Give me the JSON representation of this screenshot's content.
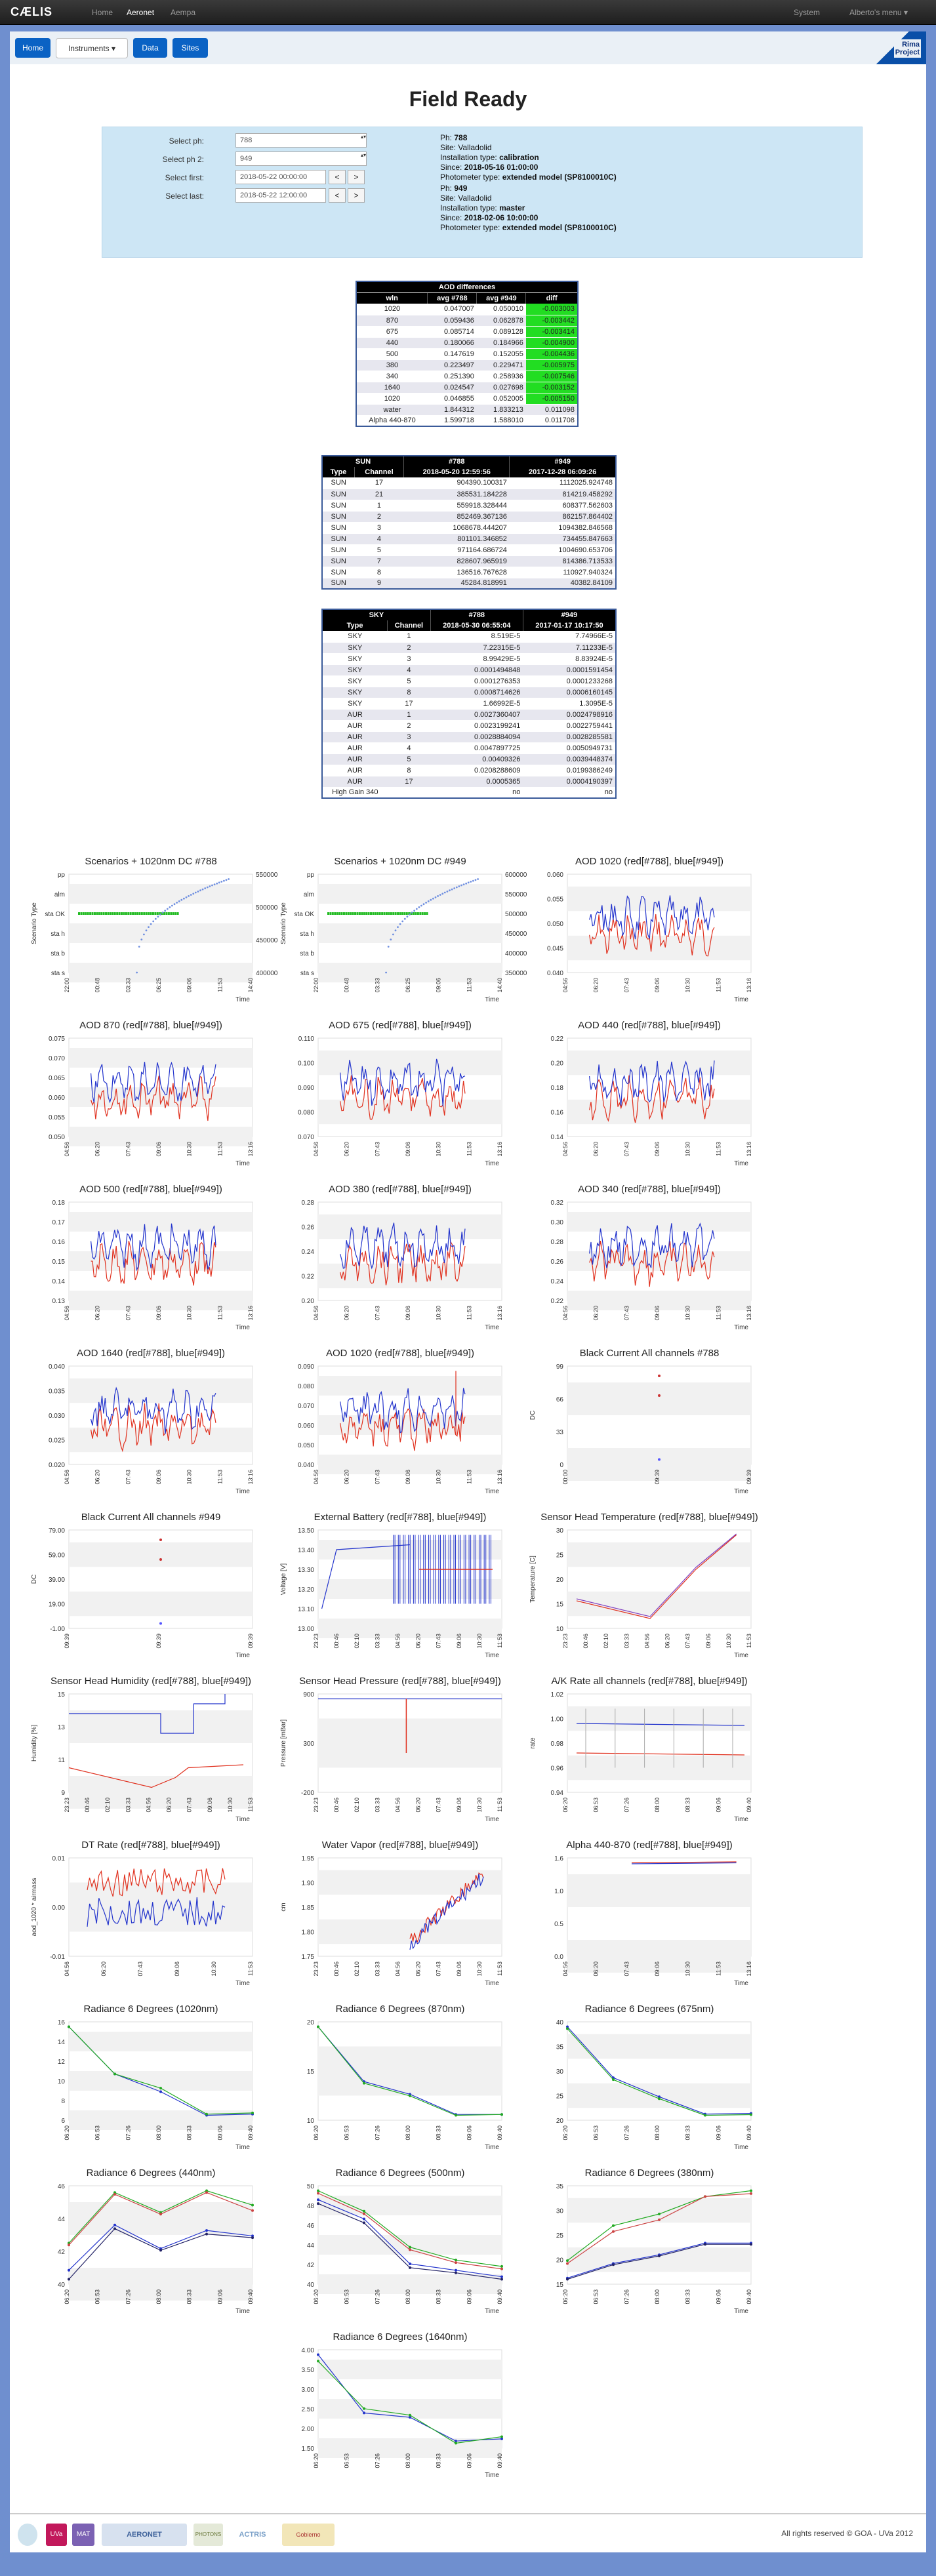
{
  "navbar": {
    "brand": "CÆLIS",
    "links": [
      "Home",
      "Aeronet",
      "Aempa"
    ],
    "right": [
      "System",
      "Alberto's menu ▾"
    ]
  },
  "tabs": [
    "Home",
    "Instruments ▾",
    "Data",
    "Sites"
  ],
  "corner": {
    "line1": "Rima",
    "line2": "Project"
  },
  "page": {
    "title": "Field Ready"
  },
  "selector": {
    "ph_label": "Select ph:",
    "ph_value": "788",
    "ph2_label": "Select ph 2:",
    "ph2_value": "949",
    "first_label": "Select first:",
    "first_value": "2018-05-22 00:00:00",
    "last_label": "Select last:",
    "last_value": "2018-05-22 12:00:00",
    "prev": "<",
    "next": ">"
  },
  "info": [
    {
      "ph": "788",
      "site": "Valladolid",
      "type": "calibration",
      "since": "2018-05-16 01:00:00",
      "ptype": "extended model (SP8100010C)"
    },
    {
      "ph": "949",
      "site": "Valladolid",
      "type": "master",
      "since": "2018-02-06 10:00:00",
      "ptype": "extended model (SP8100010C)"
    }
  ],
  "info_labels": {
    "ph": "Ph:",
    "site": "Site:",
    "type": "Installation type:",
    "since": "Since:",
    "ptype": "Photometer type:"
  },
  "aod_table": {
    "caption": "AOD differences",
    "headers": [
      "wln",
      "avg #788",
      "avg #949",
      "diff"
    ],
    "rows": [
      [
        "1020",
        "0.047007",
        "0.050010",
        "-0.003003"
      ],
      [
        "870",
        "0.059436",
        "0.062878",
        "-0.003442"
      ],
      [
        "675",
        "0.085714",
        "0.089128",
        "-0.003414"
      ],
      [
        "440",
        "0.180066",
        "0.184966",
        "-0.004900"
      ],
      [
        "500",
        "0.147619",
        "0.152055",
        "-0.004436"
      ],
      [
        "380",
        "0.223497",
        "0.229471",
        "-0.005975"
      ],
      [
        "340",
        "0.251390",
        "0.258936",
        "-0.007546"
      ],
      [
        "1640",
        "0.024547",
        "0.027698",
        "-0.003152"
      ],
      [
        "1020",
        "0.046855",
        "0.052005",
        "-0.005150"
      ],
      [
        "water",
        "1.844312",
        "1.833213",
        "0.011098"
      ],
      [
        "Alpha 440-870",
        "1.599718",
        "1.588010",
        "0.011708"
      ]
    ]
  },
  "sun_table": {
    "cap": [
      "SUN",
      "#788",
      "#949"
    ],
    "headers": [
      "Type",
      "Channel",
      "2018-05-20 12:59:56",
      "2017-12-28 06:09:26"
    ],
    "rows": [
      [
        "SUN",
        "17",
        "904390.100317",
        "1112025.924748"
      ],
      [
        "SUN",
        "21",
        "385531.184228",
        "814219.458292"
      ],
      [
        "SUN",
        "1",
        "559918.328444",
        "608377.562603"
      ],
      [
        "SUN",
        "2",
        "852469.367136",
        "862157.864402"
      ],
      [
        "SUN",
        "3",
        "1068678.444207",
        "1094382.846568"
      ],
      [
        "SUN",
        "4",
        "801101.346852",
        "734455.847663"
      ],
      [
        "SUN",
        "5",
        "971164.686724",
        "1004690.653706"
      ],
      [
        "SUN",
        "7",
        "828607.965919",
        "814386.713533"
      ],
      [
        "SUN",
        "8",
        "136516.767628",
        "110927.940324"
      ],
      [
        "SUN",
        "9",
        "45284.818991",
        "40382.84109"
      ]
    ]
  },
  "sky_table": {
    "cap": [
      "SKY",
      "#788",
      "#949"
    ],
    "headers": [
      "Type",
      "Channel",
      "2018-05-30 06:55:04",
      "2017-01-17 10:17:50"
    ],
    "rows": [
      [
        "SKY",
        "1",
        "8.519E-5",
        "7.74966E-5"
      ],
      [
        "SKY",
        "2",
        "7.22315E-5",
        "7.11233E-5"
      ],
      [
        "SKY",
        "3",
        "8.99429E-5",
        "8.83924E-5"
      ],
      [
        "SKY",
        "4",
        "0.0001494848",
        "0.0001591454"
      ],
      [
        "SKY",
        "5",
        "0.0001276353",
        "0.0001233268"
      ],
      [
        "SKY",
        "8",
        "0.0008714626",
        "0.0006160145"
      ],
      [
        "SKY",
        "17",
        "1.66992E-5",
        "1.3095E-5"
      ],
      [
        "AUR",
        "1",
        "0.0027360407",
        "0.0024798916"
      ],
      [
        "AUR",
        "2",
        "0.0023199241",
        "0.0022759441"
      ],
      [
        "AUR",
        "3",
        "0.0028884094",
        "0.0028285581"
      ],
      [
        "AUR",
        "4",
        "0.0047897725",
        "0.0050949731"
      ],
      [
        "AUR",
        "5",
        "0.00409326",
        "0.0039448374"
      ],
      [
        "AUR",
        "8",
        "0.0208288609",
        "0.0199386249"
      ],
      [
        "AUR",
        "17",
        "0.0005365",
        "0.0004190397"
      ],
      [
        "High Gain 340",
        "",
        "no",
        "no"
      ]
    ]
  },
  "charts": [
    {
      "title": "Scenarios + 1020nm DC #788",
      "ylabel": "Scenario Type",
      "cats": [
        "pp",
        "alm",
        "sta OK",
        "sta h",
        "sta b",
        "sta s"
      ],
      "yticks_r": [
        "550000",
        "500000",
        "450000",
        "400000"
      ],
      "xticks": [
        "22:00",
        "00:48",
        "03:33",
        "06:25",
        "09:06",
        "11:53",
        "14:40"
      ],
      "type": "scen"
    },
    {
      "title": "Scenarios + 1020nm DC #949",
      "ylabel": "Scenario Type",
      "cats": [
        "pp",
        "alm",
        "sta OK",
        "sta h",
        "sta b",
        "sta s"
      ],
      "yticks_r": [
        "600000",
        "550000",
        "500000",
        "450000",
        "400000",
        "350000"
      ],
      "xticks": [
        "22:00",
        "00:48",
        "03:33",
        "06:25",
        "09:06",
        "11:53",
        "14:40"
      ],
      "type": "scen"
    },
    {
      "title": "AOD 1020 (red[#788], blue[#949])",
      "ylabel": "",
      "yticks": [
        "0.060",
        "0.055",
        "0.050",
        "0.045",
        "0.040"
      ],
      "xticks": [
        "04:56",
        "06:20",
        "07:43",
        "09:06",
        "10:30",
        "11:53",
        "13:16"
      ],
      "type": "aod"
    },
    {
      "title": "AOD 870 (red[#788], blue[#949])",
      "ylabel": "",
      "yticks": [
        "0.075",
        "0.070",
        "0.065",
        "0.060",
        "0.055",
        "0.050"
      ],
      "xticks": [
        "04:56",
        "06:20",
        "07:43",
        "09:06",
        "10:30",
        "11:53",
        "13:16"
      ],
      "type": "aod"
    },
    {
      "title": "AOD 675 (red[#788], blue[#949])",
      "ylabel": "",
      "yticks": [
        "0.110",
        "0.100",
        "0.090",
        "0.080",
        "0.070"
      ],
      "xticks": [
        "04:56",
        "06:20",
        "07:43",
        "09:06",
        "10:30",
        "11:53",
        "13:16"
      ],
      "type": "aod"
    },
    {
      "title": "AOD 440 (red[#788], blue[#949])",
      "ylabel": "",
      "yticks": [
        "0.22",
        "0.20",
        "0.18",
        "0.16",
        "0.14"
      ],
      "xticks": [
        "04:56",
        "06:20",
        "07:43",
        "09:06",
        "10:30",
        "11:53",
        "13:16"
      ],
      "type": "aod"
    },
    {
      "title": "AOD 500 (red[#788], blue[#949])",
      "ylabel": "",
      "yticks": [
        "0.18",
        "0.17",
        "0.16",
        "0.15",
        "0.14",
        "0.13"
      ],
      "xticks": [
        "04:56",
        "06:20",
        "07:43",
        "09:06",
        "10:30",
        "11:53",
        "13:16"
      ],
      "type": "aod"
    },
    {
      "title": "AOD 380 (red[#788], blue[#949])",
      "ylabel": "",
      "yticks": [
        "0.28",
        "0.26",
        "0.24",
        "0.22",
        "0.20"
      ],
      "xticks": [
        "04:56",
        "06:20",
        "07:43",
        "09:06",
        "10:30",
        "11:53",
        "13:16"
      ],
      "type": "aod"
    },
    {
      "title": "AOD 340 (red[#788], blue[#949])",
      "ylabel": "",
      "yticks": [
        "0.32",
        "0.30",
        "0.28",
        "0.26",
        "0.24",
        "0.22"
      ],
      "xticks": [
        "04:56",
        "06:20",
        "07:43",
        "09:06",
        "10:30",
        "11:53",
        "13:16"
      ],
      "type": "aod"
    },
    {
      "title": "AOD 1640 (red[#788], blue[#949])",
      "ylabel": "",
      "yticks": [
        "0.040",
        "0.035",
        "0.030",
        "0.025",
        "0.020"
      ],
      "xticks": [
        "04:56",
        "06:20",
        "07:43",
        "09:06",
        "10:30",
        "11:53",
        "13:16"
      ],
      "type": "aod"
    },
    {
      "title": "AOD 1020 (red[#788], blue[#949])",
      "ylabel": "",
      "yticks": [
        "0.090",
        "0.080",
        "0.070",
        "0.060",
        "0.050",
        "0.040"
      ],
      "xticks": [
        "04:56",
        "06:20",
        "07:43",
        "09:06",
        "10:30",
        "11:53",
        "13:16"
      ],
      "type": "aod2"
    },
    {
      "title": "Black Current All channels #788",
      "ylabel": "DC",
      "yticks": [
        "99",
        "66",
        "33",
        "0"
      ],
      "xticks": [
        "00:00",
        "09:39",
        "09:39"
      ],
      "type": "bc"
    },
    {
      "title": "Black Current All channels #949",
      "ylabel": "DC",
      "yticks": [
        "79.00",
        "59.00",
        "39.00",
        "19.00",
        "-1.00"
      ],
      "xticks": [
        "09:39",
        "09:39",
        "09:39"
      ],
      "type": "bc"
    },
    {
      "title": "External Battery (red[#788], blue[#949])",
      "ylabel": "Voltage [V]",
      "yticks": [
        "13.50",
        "13.40",
        "13.30",
        "13.20",
        "13.10",
        "13.00"
      ],
      "xticks": [
        "23:23",
        "00:46",
        "02:10",
        "03:33",
        "04:56",
        "06:20",
        "07:43",
        "09:06",
        "10:30",
        "11:53"
      ],
      "type": "batt"
    },
    {
      "title": "Sensor Head Temperature (red[#788], blue[#949])",
      "ylabel": "Temperature [C]",
      "yticks": [
        "30",
        "25",
        "20",
        "15",
        "10"
      ],
      "xticks": [
        "23:23",
        "00:46",
        "02:10",
        "03:33",
        "04:56",
        "06:20",
        "07:43",
        "09:06",
        "10:30",
        "11:53"
      ],
      "type": "temp"
    },
    {
      "title": "Sensor Head Humidity (red[#788], blue[#949])",
      "ylabel": "Humidity [%]",
      "yticks": [
        "15",
        "13",
        "11",
        "9"
      ],
      "xticks": [
        "23:23",
        "00:46",
        "02:10",
        "03:33",
        "04:56",
        "06:20",
        "07:43",
        "09:06",
        "10:30",
        "11:53"
      ],
      "type": "hum"
    },
    {
      "title": "Sensor Head Pressure (red[#788], blue[#949])",
      "ylabel": "Pressure [mBar]",
      "yticks": [
        "900",
        "300",
        "-200"
      ],
      "xticks": [
        "23:23",
        "00:46",
        "02:10",
        "03:33",
        "04:56",
        "06:20",
        "07:43",
        "09:06",
        "10:30",
        "11:53"
      ],
      "type": "pres"
    },
    {
      "title": "A/K Rate all channels (red[#788], blue[#949])",
      "ylabel": "rate",
      "yticks": [
        "1.02",
        "1.00",
        "0.98",
        "0.96",
        "0.94"
      ],
      "xticks": [
        "06:20",
        "06:53",
        "07:26",
        "08:00",
        "08:33",
        "09:06",
        "09:40"
      ],
      "type": "ak"
    },
    {
      "title": "DT Rate (red[#788], blue[#949])",
      "ylabel": "aod_1020 * airmass",
      "yticks": [
        "0.01",
        "0.00",
        "-0.01"
      ],
      "xticks": [
        "04:56",
        "06:20",
        "07:43",
        "09:06",
        "10:30",
        "11:53"
      ],
      "type": "dt"
    },
    {
      "title": "Water Vapor (red[#788], blue[#949])",
      "ylabel": "cm",
      "yticks": [
        "1.95",
        "1.90",
        "1.85",
        "1.80",
        "1.75"
      ],
      "xticks": [
        "23:23",
        "00:46",
        "02:10",
        "03:33",
        "04:56",
        "06:20",
        "07:43",
        "09:06",
        "10:30",
        "11:53"
      ],
      "type": "wv"
    },
    {
      "title": "Alpha 440-870 (red[#788], blue[#949])",
      "ylabel": "",
      "yticks": [
        "1.6",
        "1.0",
        "0.5",
        "0.0"
      ],
      "xticks": [
        "04:56",
        "06:20",
        "07:43",
        "09:06",
        "10:30",
        "11:53",
        "13:16"
      ],
      "type": "alpha"
    },
    {
      "title": "Radiance 6 Degrees (1020nm)",
      "ylabel": "",
      "yticks": [
        "16",
        "14",
        "12",
        "10",
        "8",
        "6"
      ],
      "xticks": [
        "06:20",
        "06:53",
        "07:26",
        "08:00",
        "08:33",
        "09:06",
        "09:40"
      ],
      "type": "rad",
      "pts": [
        [
          15,
          15
        ],
        [
          11,
          11
        ],
        [
          9.5,
          9.8
        ],
        [
          7.5,
          7.6
        ],
        [
          7.6,
          7.7
        ]
      ]
    },
    {
      "title": "Radiance 6 Degrees (870nm)",
      "ylabel": "",
      "yticks": [
        "20",
        "15",
        "10"
      ],
      "xticks": [
        "06:20",
        "06:53",
        "07:26",
        "08:00",
        "08:33",
        "09:06",
        "09:40"
      ],
      "type": "rad",
      "pts": [
        [
          22,
          22
        ],
        [
          15.5,
          15.3
        ],
        [
          14,
          13.8
        ],
        [
          11.6,
          11.5
        ],
        [
          11.6,
          11.6
        ]
      ]
    },
    {
      "title": "Radiance 6 Degrees (675nm)",
      "ylabel": "",
      "yticks": [
        "40",
        "35",
        "30",
        "25",
        "20"
      ],
      "xticks": [
        "06:20",
        "06:53",
        "07:26",
        "08:00",
        "08:33",
        "09:06",
        "09:40"
      ],
      "type": "rad",
      "pts": [
        [
          36.5,
          36.2
        ],
        [
          28.5,
          28.2
        ],
        [
          25.5,
          25.2
        ],
        [
          22.8,
          22.6
        ],
        [
          22.9,
          22.7
        ]
      ]
    },
    {
      "title": "Radiance 6 Degrees (440nm)",
      "ylabel": "",
      "yticks": [
        "46",
        "44",
        "42",
        "40"
      ],
      "xticks": [
        "06:20",
        "06:53",
        "07:26",
        "08:00",
        "08:33",
        "09:06",
        "09:40"
      ],
      "type": "rad4",
      "pts": [
        [
          41,
          40.5,
          42.5,
          42.4
        ],
        [
          43.5,
          43.3,
          45.3,
          45.2
        ],
        [
          42.2,
          42.1,
          44.2,
          44.1
        ],
        [
          43.2,
          43.0,
          45.4,
          45.3
        ],
        [
          42.9,
          42.8,
          44.6,
          44.3
        ]
      ]
    },
    {
      "title": "Radiance 6 Degrees (500nm)",
      "ylabel": "",
      "yticks": [
        "50",
        "48",
        "46",
        "44",
        "42",
        "40"
      ],
      "xticks": [
        "06:20",
        "06:53",
        "07:26",
        "08:00",
        "08:33",
        "09:06",
        "09:40"
      ],
      "type": "rad4",
      "pts": [
        [
          47.5,
          47.2,
          48.2,
          48
        ],
        [
          46,
          45.7,
          46.6,
          46.4
        ],
        [
          42.5,
          42.2,
          43.8,
          43.6
        ],
        [
          42,
          41.8,
          42.8,
          42.6
        ],
        [
          41.5,
          41.3,
          42.3,
          42.1
        ]
      ]
    },
    {
      "title": "Radiance 6 Degrees (380nm)",
      "ylabel": "",
      "yticks": [
        "35",
        "30",
        "25",
        "20",
        "15"
      ],
      "xticks": [
        "06:20",
        "06:53",
        "07:26",
        "08:00",
        "08:33",
        "09:06",
        "09:40"
      ],
      "type": "rad4",
      "pts": [
        [
          20,
          19.8,
          23,
          22.5
        ],
        [
          22.5,
          22.3,
          29,
          28
        ],
        [
          24,
          23.8,
          31,
          30
        ],
        [
          26,
          25.8,
          34,
          34
        ],
        [
          26,
          25.8,
          35,
          34.5
        ]
      ]
    },
    {
      "title": "Radiance 6 Degrees (1640nm)",
      "ylabel": "",
      "yticks": [
        "4.00",
        "3.50",
        "3.00",
        "2.50",
        "2.00",
        "1.50"
      ],
      "xticks": [
        "06:20",
        "06:53",
        "07:26",
        "08:00",
        "08:33",
        "09:06",
        "09:40"
      ],
      "type": "rad",
      "pts": [
        [
          3.75,
          3.6
        ],
        [
          2.4,
          2.5
        ],
        [
          2.3,
          2.35
        ],
        [
          1.75,
          1.7
        ],
        [
          1.8,
          1.85
        ]
      ]
    }
  ],
  "axis_time": "Time",
  "footer": {
    "copyright": "All rights reserved © GOA - UVa 2012",
    "logos": [
      "UVa",
      "MAT",
      "AERONET",
      "PHOTONS",
      "ACTRIS",
      "Gobierno"
    ]
  }
}
